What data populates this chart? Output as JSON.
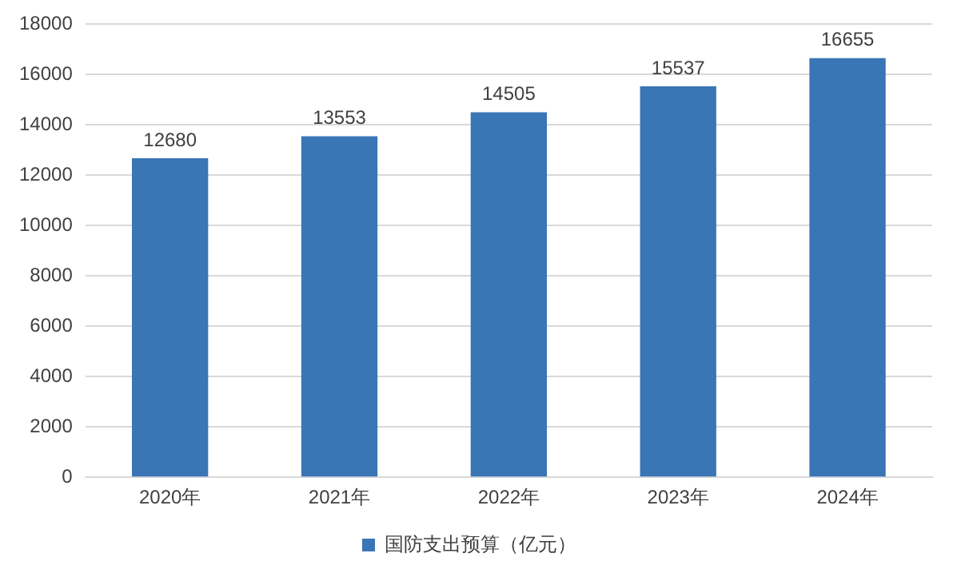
{
  "chart_data": {
    "type": "bar",
    "categories": [
      "2020年",
      "2021年",
      "2022年",
      "2023年",
      "2024年"
    ],
    "series": [
      {
        "name": "国防支出预算（亿元）",
        "color": "#3a75b5",
        "values": [
          12680,
          13553,
          14505,
          15537,
          16655
        ]
      }
    ],
    "ylim": [
      0,
      18000
    ],
    "yticks": [
      0,
      2000,
      4000,
      6000,
      8000,
      10000,
      12000,
      14000,
      16000,
      18000
    ],
    "grid": "y",
    "legend": "bottom",
    "data_labels": true
  }
}
